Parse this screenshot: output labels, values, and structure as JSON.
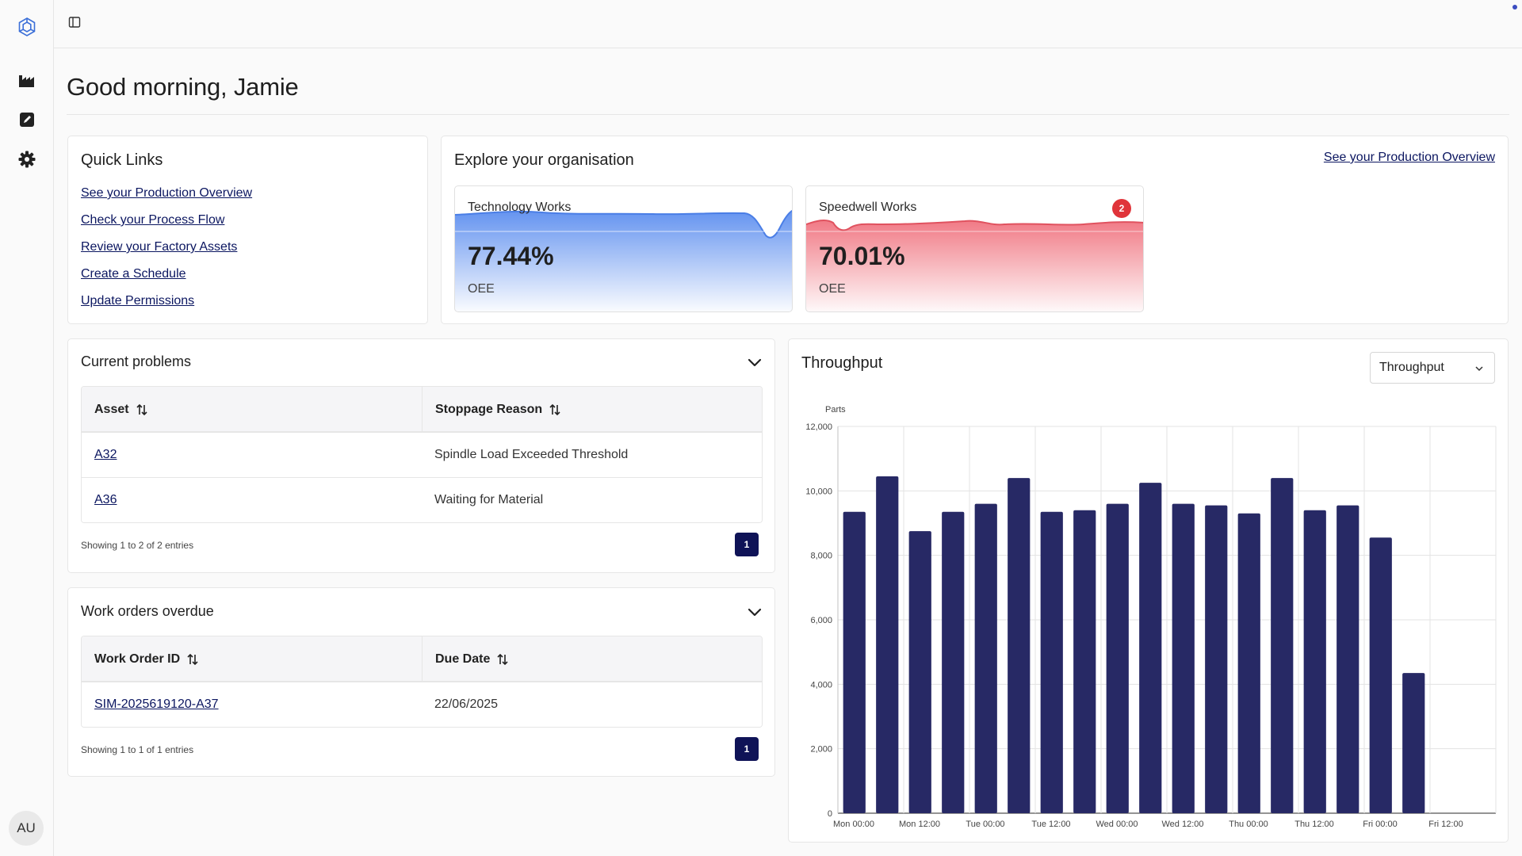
{
  "sidebar": {
    "items": [
      {
        "name": "brand-logo-icon"
      },
      {
        "name": "factory-icon"
      },
      {
        "name": "edit-icon"
      },
      {
        "name": "settings-gear-icon"
      }
    ],
    "avatar_initials": "AU"
  },
  "greeting": "Good morning, Jamie",
  "quick_links": {
    "title": "Quick Links",
    "links": [
      "See your Production Overview",
      "Check your Process Flow",
      "Review your Factory Assets",
      "Create a Schedule",
      "Update Permissions"
    ]
  },
  "explore": {
    "title": "Explore your organisation",
    "overview_link": "See your Production Overview",
    "sites": [
      {
        "name": "Technology Works",
        "value": "77.44%",
        "label": "OEE",
        "color": "#5b8def",
        "badge": ""
      },
      {
        "name": "Speedwell Works",
        "value": "70.01%",
        "label": "OEE",
        "color": "#e8707a",
        "badge": "2"
      }
    ]
  },
  "problems": {
    "title": "Current problems",
    "columns": [
      "Asset",
      "Stoppage Reason"
    ],
    "rows": [
      [
        "A32",
        "Spindle Load Exceeded Threshold"
      ],
      [
        "A36",
        "Waiting for Material"
      ]
    ],
    "showing": "Showing 1 to 2 of 2 entries",
    "page": "1"
  },
  "work_orders": {
    "title": "Work orders overdue",
    "columns": [
      "Work Order ID",
      "Due Date"
    ],
    "rows": [
      [
        "SIM-2025619120-A37",
        "22/06/2025"
      ]
    ],
    "showing": "Showing 1 to 1 of 1 entries",
    "page": "1"
  },
  "throughput": {
    "title": "Throughput",
    "select_value": "Throughput"
  },
  "chart_data": {
    "type": "bar",
    "ylabel": "Parts",
    "ylim": [
      0,
      12000
    ],
    "yticks": [
      "0",
      "2,000",
      "4,000",
      "6,000",
      "8,000",
      "10,000",
      "12,000"
    ],
    "x_tick_labels": [
      "Mon 00:00",
      "Mon 12:00",
      "Tue 00:00",
      "Tue 12:00",
      "Wed 00:00",
      "Wed 12:00",
      "Thu 00:00",
      "Thu 12:00",
      "Fri 00:00",
      "Fri 12:00"
    ],
    "values": [
      9350,
      10450,
      8750,
      9350,
      9600,
      10400,
      9350,
      9400,
      9600,
      10250,
      9600,
      9550,
      9300,
      10400,
      9400,
      9550,
      8550,
      4350
    ],
    "bar_color": "#272965",
    "grid": true
  }
}
